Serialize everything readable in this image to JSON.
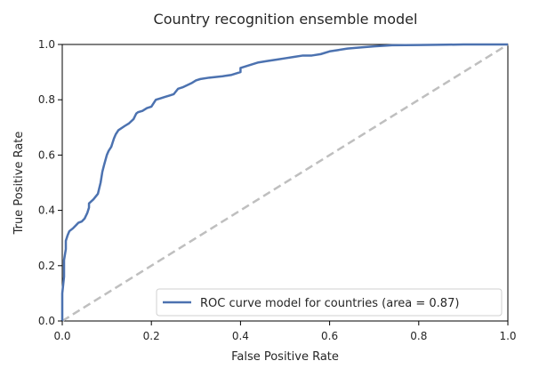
{
  "chart_data": {
    "type": "line",
    "title": "Country recognition ensemble model",
    "xlabel": "False Positive Rate",
    "ylabel": "True Positive Rate",
    "xlim": [
      0.0,
      1.0
    ],
    "ylim": [
      0.0,
      1.0
    ],
    "xticks": [
      "0.0",
      "0.2",
      "0.4",
      "0.6",
      "0.8",
      "1.0"
    ],
    "yticks": [
      "0.0",
      "0.2",
      "0.4",
      "0.6",
      "0.8",
      "1.0"
    ],
    "grid": false,
    "legend_position": "lower right",
    "series": [
      {
        "name": "ROC curve model for countries (area = 0.87)",
        "color": "#4c72b0",
        "style": "solid",
        "x": [
          0.0,
          0.0,
          0.004,
          0.004,
          0.008,
          0.008,
          0.012,
          0.016,
          0.024,
          0.03,
          0.036,
          0.044,
          0.05,
          0.056,
          0.06,
          0.06,
          0.07,
          0.08,
          0.086,
          0.09,
          0.094,
          0.1,
          0.104,
          0.11,
          0.116,
          0.12,
          0.126,
          0.14,
          0.15,
          0.16,
          0.166,
          0.17,
          0.18,
          0.19,
          0.2,
          0.21,
          0.22,
          0.23,
          0.24,
          0.25,
          0.26,
          0.27,
          0.29,
          0.3,
          0.31,
          0.33,
          0.36,
          0.38,
          0.4,
          0.4,
          0.42,
          0.44,
          0.46,
          0.48,
          0.5,
          0.52,
          0.54,
          0.56,
          0.58,
          0.6,
          0.62,
          0.64,
          0.66,
          0.7,
          0.72,
          0.74,
          0.8,
          0.86,
          0.9,
          0.95,
          1.0
        ],
        "y": [
          0.0,
          0.1,
          0.16,
          0.22,
          0.26,
          0.29,
          0.31,
          0.325,
          0.335,
          0.345,
          0.355,
          0.36,
          0.37,
          0.39,
          0.41,
          0.425,
          0.44,
          0.46,
          0.5,
          0.54,
          0.565,
          0.6,
          0.615,
          0.63,
          0.66,
          0.675,
          0.69,
          0.705,
          0.715,
          0.73,
          0.75,
          0.755,
          0.76,
          0.77,
          0.775,
          0.8,
          0.805,
          0.81,
          0.815,
          0.82,
          0.84,
          0.845,
          0.86,
          0.87,
          0.875,
          0.88,
          0.885,
          0.89,
          0.9,
          0.915,
          0.925,
          0.935,
          0.94,
          0.945,
          0.95,
          0.955,
          0.96,
          0.96,
          0.965,
          0.975,
          0.98,
          0.985,
          0.988,
          0.993,
          0.995,
          0.997,
          0.998,
          0.999,
          1.0,
          1.0,
          1.0
        ]
      },
      {
        "color": "#bfbfbf",
        "style": "dashed",
        "x": [
          0.0,
          1.0
        ],
        "y": [
          0.0,
          1.0
        ]
      }
    ]
  }
}
